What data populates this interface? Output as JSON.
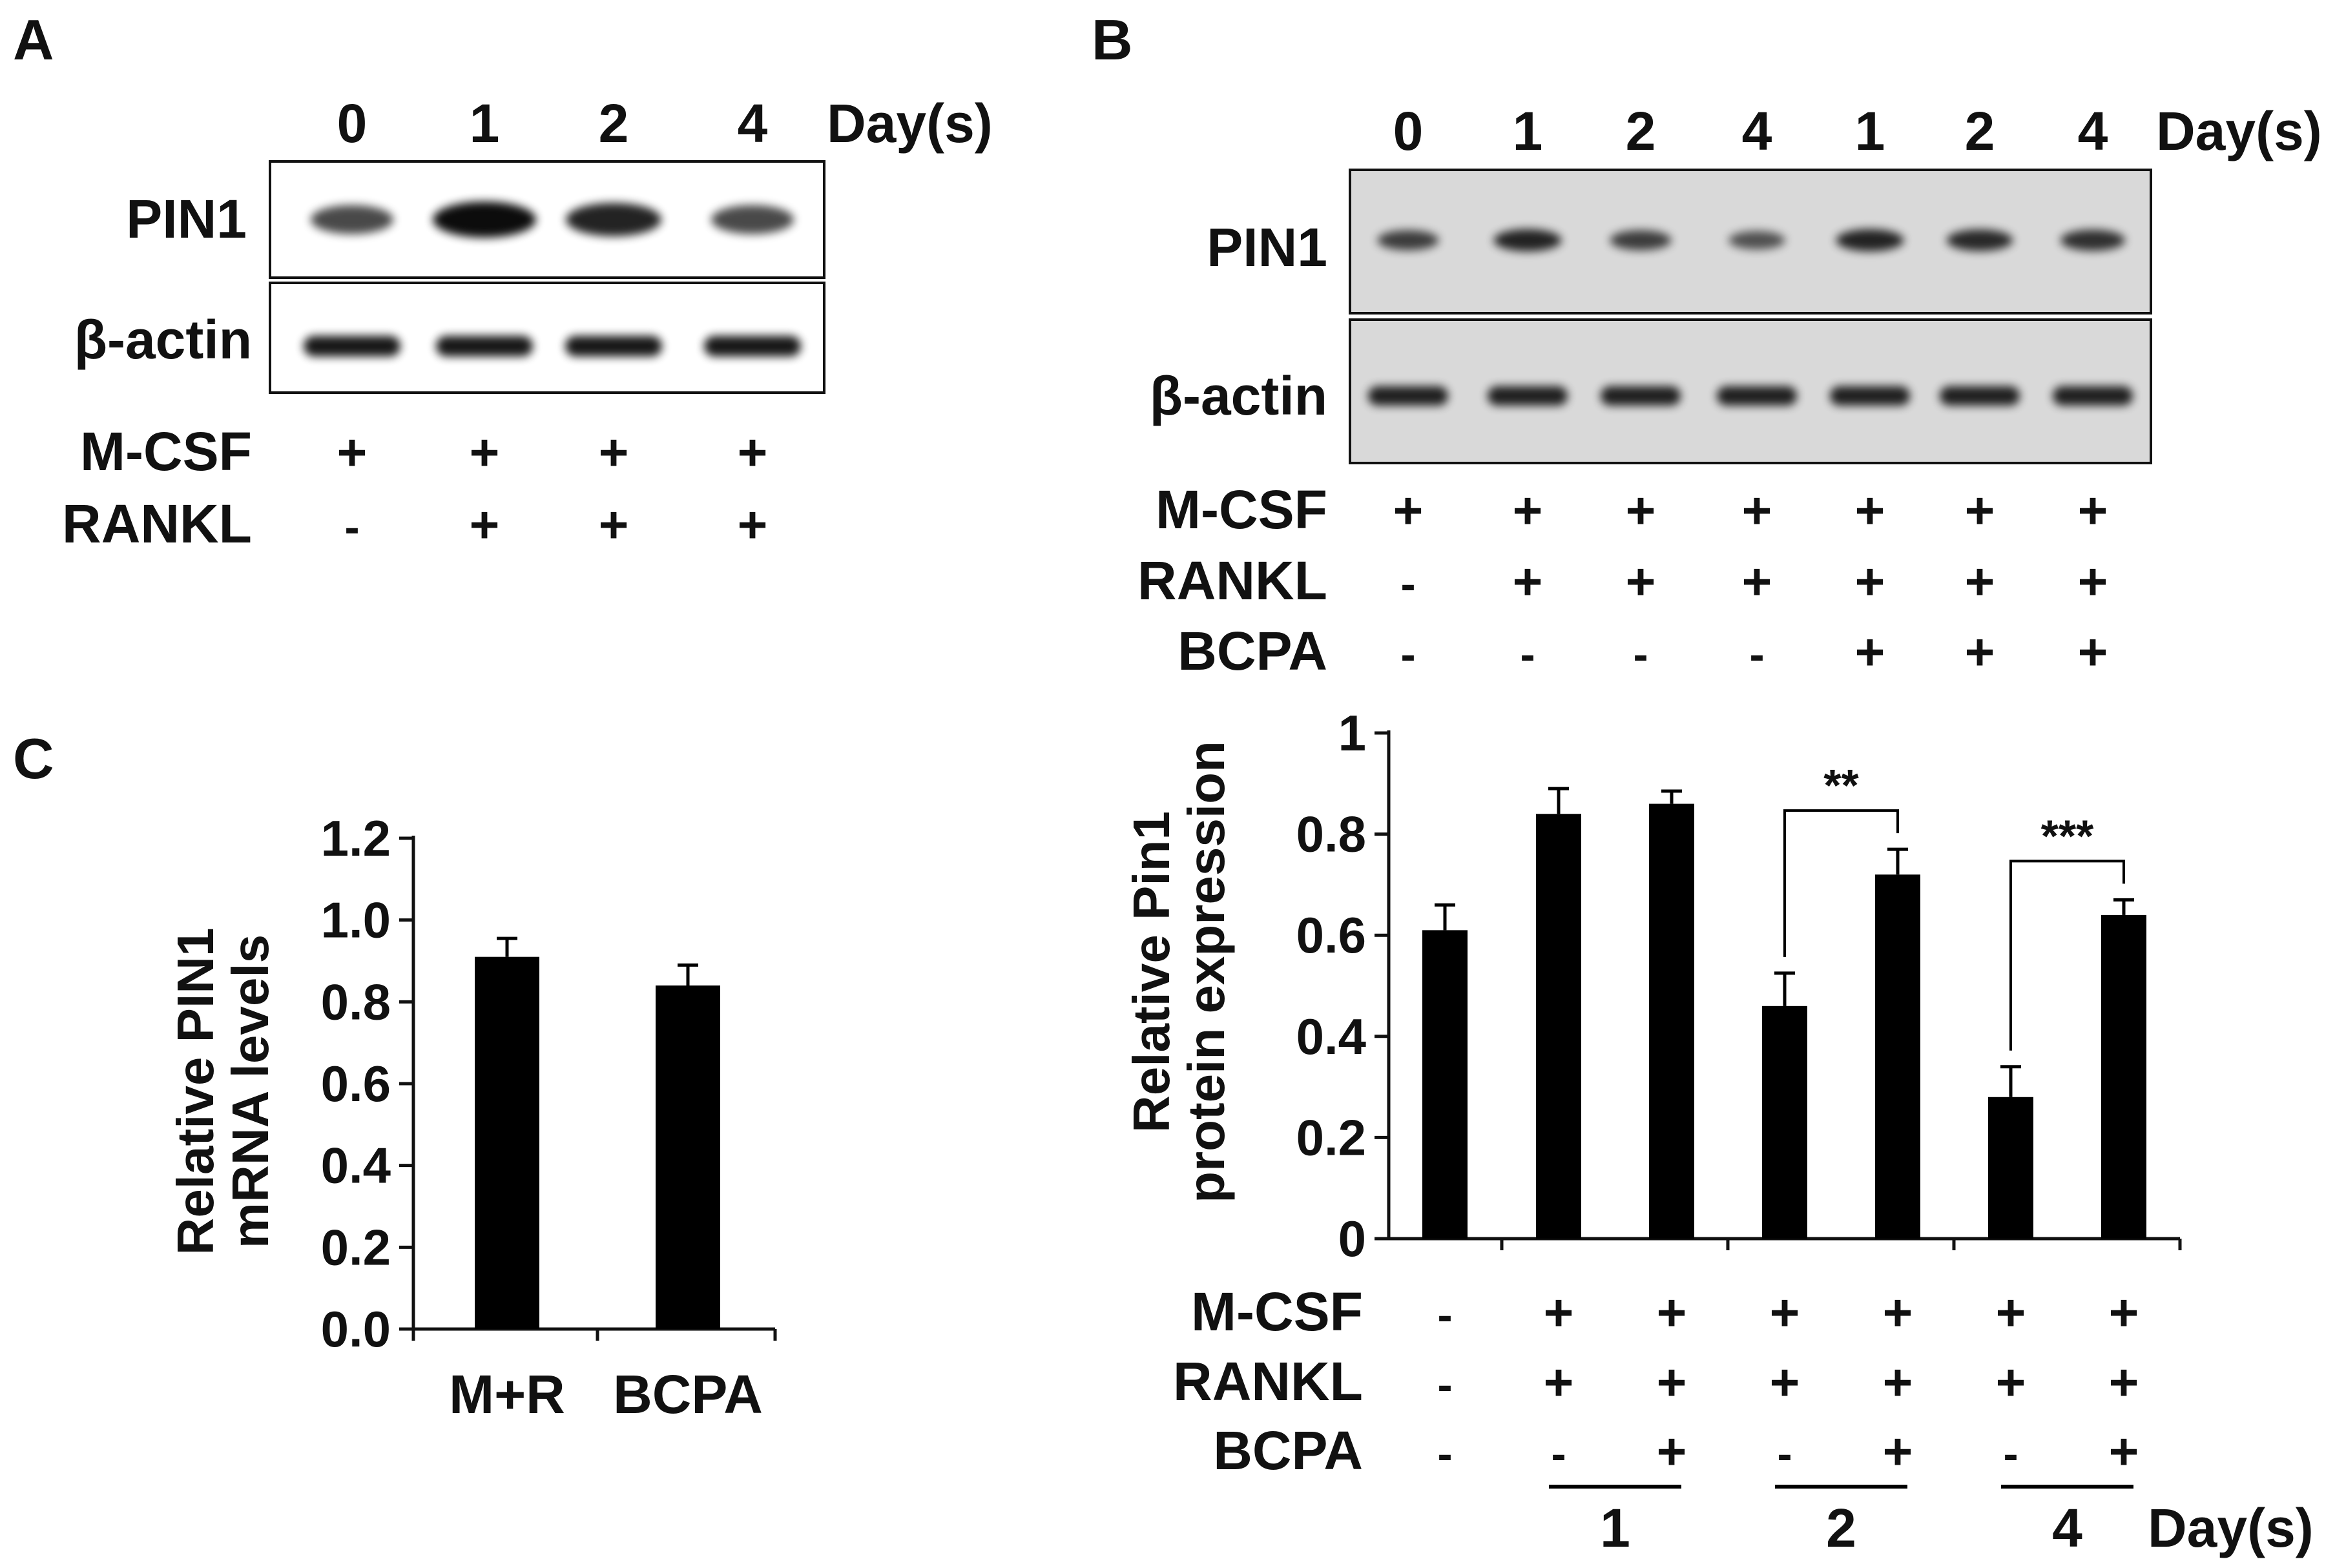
{
  "panels": {
    "a": {
      "letter": "A",
      "day_unit": "Day(s)",
      "days": [
        "0",
        "1",
        "2",
        "4"
      ],
      "blots": [
        {
          "label": "PIN1",
          "band_intensity": [
            0.6,
            1.0,
            0.85,
            0.6
          ]
        },
        {
          "label": "β-actin",
          "band_intensity": [
            1.0,
            1.0,
            1.0,
            1.0
          ]
        }
      ],
      "treatments": [
        {
          "label": "M-CSF",
          "signs": [
            "+",
            "+",
            "+",
            "+"
          ]
        },
        {
          "label": "RANKL",
          "signs": [
            "-",
            "+",
            "+",
            "+"
          ]
        }
      ]
    },
    "b": {
      "letter": "B",
      "day_unit": "Day(s)",
      "days": [
        "0",
        "1",
        "2",
        "4",
        "1",
        "2",
        "4"
      ],
      "blots": [
        {
          "label": "PIN1",
          "band_intensity": [
            0.7,
            0.9,
            0.7,
            0.55,
            0.9,
            0.85,
            0.8
          ]
        },
        {
          "label": "β-actin",
          "band_intensity": [
            1.0,
            1.0,
            1.0,
            1.0,
            1.0,
            1.0,
            1.0
          ]
        }
      ],
      "treatments": [
        {
          "label": "M-CSF",
          "signs": [
            "+",
            "+",
            "+",
            "+",
            "+",
            "+",
            "+"
          ]
        },
        {
          "label": "RANKL",
          "signs": [
            "-",
            "+",
            "+",
            "+",
            "+",
            "+",
            "+"
          ]
        },
        {
          "label": "BCPA",
          "signs": [
            "-",
            "-",
            "-",
            "-",
            "+",
            "+",
            "+"
          ]
        }
      ],
      "chart_treatments": [
        {
          "label": "M-CSF",
          "signs": [
            "-",
            "+",
            "+",
            "+",
            "+",
            "+",
            "+"
          ]
        },
        {
          "label": "RANKL",
          "signs": [
            "-",
            "+",
            "+",
            "+",
            "+",
            "+",
            "+"
          ]
        },
        {
          "label": "BCPA",
          "signs": [
            "-",
            "-",
            "+",
            "-",
            "+",
            "-",
            "+"
          ]
        }
      ],
      "group_labels": [
        "1",
        "2",
        "4"
      ],
      "group_unit": "Day(s)"
    },
    "c": {
      "letter": "C"
    }
  },
  "chart_data": [
    {
      "type": "bar",
      "panel": "B",
      "ylabel": [
        "Relative Pin1",
        "protein expression"
      ],
      "ylim": [
        0,
        1
      ],
      "yticks": [
        "0",
        "0.2",
        "0.4",
        "0.6",
        "0.8",
        "1"
      ],
      "ytick_values": [
        0,
        0.2,
        0.4,
        0.6,
        0.8,
        1.0
      ],
      "values": [
        0.61,
        0.84,
        0.86,
        0.46,
        0.72,
        0.28,
        0.64
      ],
      "errors": [
        0.05,
        0.05,
        0.025,
        0.065,
        0.05,
        0.06,
        0.03
      ],
      "significance": [
        {
          "from_bar": 3,
          "to_bar": 4,
          "label": "**"
        },
        {
          "from_bar": 5,
          "to_bar": 6,
          "label": "***"
        }
      ],
      "colors": {
        "bar": "#000000"
      }
    },
    {
      "type": "bar",
      "panel": "C",
      "ylabel": [
        "Relative PIN1",
        "mRNA levels"
      ],
      "ylim": [
        0,
        1.2
      ],
      "yticks": [
        "0.0",
        "0.2",
        "0.4",
        "0.6",
        "0.8",
        "1.0",
        "1.2"
      ],
      "ytick_values": [
        0,
        0.2,
        0.4,
        0.6,
        0.8,
        1.0,
        1.2
      ],
      "categories": [
        "M+R",
        "BCPA"
      ],
      "values": [
        0.91,
        0.84
      ],
      "errors": [
        0.045,
        0.05
      ],
      "colors": {
        "bar": "#000000"
      }
    }
  ]
}
